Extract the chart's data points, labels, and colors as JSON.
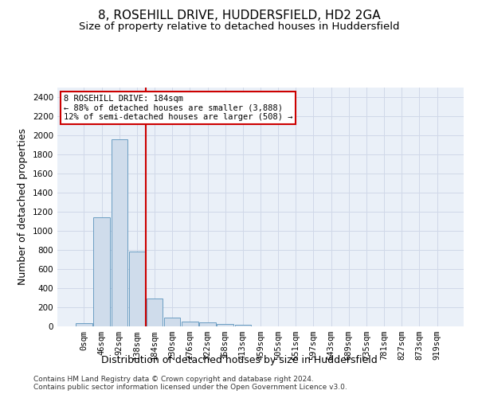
{
  "title": "8, ROSEHILL DRIVE, HUDDERSFIELD, HD2 2GA",
  "subtitle": "Size of property relative to detached houses in Huddersfield",
  "xlabel": "Distribution of detached houses by size in Huddersfield",
  "ylabel": "Number of detached properties",
  "footnote1": "Contains HM Land Registry data © Crown copyright and database right 2024.",
  "footnote2": "Contains public sector information licensed under the Open Government Licence v3.0.",
  "bar_labels": [
    "0sqm",
    "46sqm",
    "92sqm",
    "138sqm",
    "184sqm",
    "230sqm",
    "276sqm",
    "322sqm",
    "368sqm",
    "413sqm",
    "459sqm",
    "505sqm",
    "551sqm",
    "597sqm",
    "643sqm",
    "689sqm",
    "735sqm",
    "781sqm",
    "827sqm",
    "873sqm",
    "919sqm"
  ],
  "bar_values": [
    35,
    1140,
    1960,
    780,
    295,
    95,
    50,
    40,
    25,
    15,
    0,
    0,
    0,
    0,
    0,
    0,
    0,
    0,
    0,
    0,
    0
  ],
  "bar_color": "#cfdceb",
  "bar_edge_color": "#6b9dc2",
  "vline_index": 4,
  "vline_color": "#cc0000",
  "annotation_line1": "8 ROSEHILL DRIVE: 184sqm",
  "annotation_line2": "← 88% of detached houses are smaller (3,888)",
  "annotation_line3": "12% of semi-detached houses are larger (508) →",
  "annotation_box_color": "#ffffff",
  "annotation_box_edge_color": "#cc0000",
  "ylim": [
    0,
    2500
  ],
  "yticks": [
    0,
    200,
    400,
    600,
    800,
    1000,
    1200,
    1400,
    1600,
    1800,
    2000,
    2200,
    2400
  ],
  "grid_color": "#d0d8e8",
  "bg_color": "#eaf0f8",
  "title_fontsize": 11,
  "subtitle_fontsize": 9.5,
  "axis_label_fontsize": 9,
  "tick_fontsize": 7.5,
  "footnote_fontsize": 6.5
}
